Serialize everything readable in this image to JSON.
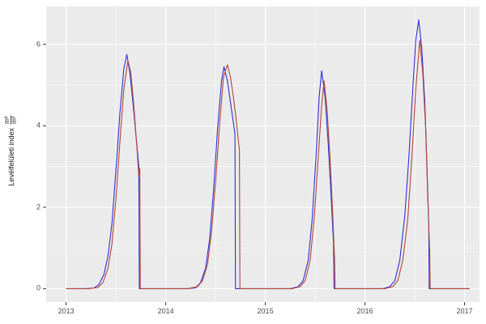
{
  "chart_data": {
    "type": "line",
    "title": "",
    "xlabel": "",
    "ylabel_text": "Levélfelületi index",
    "ylabel_fraction_numerator": "m²",
    "ylabel_fraction_denominator": "m²",
    "x_ticks": [
      2013,
      2014,
      2015,
      2016,
      2017
    ],
    "x_tick_labels": [
      "2013",
      "2014",
      "2015",
      "2016",
      "2017"
    ],
    "x_minor_ticks": [
      2013.5,
      2014.5,
      2015.5,
      2016.5
    ],
    "y_ticks": [
      0,
      2,
      4,
      6
    ],
    "y_tick_labels": [
      "0",
      "2",
      "4",
      "6"
    ],
    "y_minor_ticks": [
      1,
      3,
      5
    ],
    "xlim": [
      2012.8,
      2017.15
    ],
    "ylim": [
      -0.33,
      6.93
    ],
    "panel_bg": "#ebebeb",
    "grid_color": "#ffffff",
    "tick_mark_color": "#333333",
    "tick_text_color": "#4d4d4d",
    "legend": "none",
    "series": [
      {
        "name": "blue-series",
        "color": "#2f2fd3",
        "points": [
          [
            2013.0,
            0
          ],
          [
            2013.2,
            0
          ],
          [
            2013.28,
            0.02
          ],
          [
            2013.33,
            0.1
          ],
          [
            2013.38,
            0.35
          ],
          [
            2013.42,
            0.8
          ],
          [
            2013.46,
            1.6
          ],
          [
            2013.5,
            2.9
          ],
          [
            2013.54,
            4.3
          ],
          [
            2013.58,
            5.4
          ],
          [
            2013.61,
            5.75
          ],
          [
            2013.64,
            5.3
          ],
          [
            2013.67,
            4.6
          ],
          [
            2013.7,
            3.8
          ],
          [
            2013.73,
            3.0
          ],
          [
            2013.735,
            0
          ],
          [
            2014.2,
            0
          ],
          [
            2014.3,
            0.02
          ],
          [
            2014.35,
            0.15
          ],
          [
            2014.4,
            0.5
          ],
          [
            2014.44,
            1.2
          ],
          [
            2014.48,
            2.4
          ],
          [
            2014.52,
            3.9
          ],
          [
            2014.56,
            5.1
          ],
          [
            2014.585,
            5.45
          ],
          [
            2014.62,
            5.1
          ],
          [
            2014.66,
            4.4
          ],
          [
            2014.695,
            3.8
          ],
          [
            2014.7,
            0
          ],
          [
            2015.25,
            0
          ],
          [
            2015.33,
            0.05
          ],
          [
            2015.38,
            0.2
          ],
          [
            2015.43,
            0.7
          ],
          [
            2015.47,
            1.7
          ],
          [
            2015.51,
            3.3
          ],
          [
            2015.54,
            4.7
          ],
          [
            2015.565,
            5.35
          ],
          [
            2015.6,
            4.7
          ],
          [
            2015.63,
            3.6
          ],
          [
            2015.66,
            2.3
          ],
          [
            2015.685,
            1.1
          ],
          [
            2015.69,
            0
          ],
          [
            2016.18,
            0
          ],
          [
            2016.25,
            0.05
          ],
          [
            2016.3,
            0.2
          ],
          [
            2016.35,
            0.7
          ],
          [
            2016.4,
            1.8
          ],
          [
            2016.44,
            3.2
          ],
          [
            2016.48,
            4.9
          ],
          [
            2016.51,
            6.1
          ],
          [
            2016.54,
            6.6
          ],
          [
            2016.57,
            5.9
          ],
          [
            2016.6,
            4.6
          ],
          [
            2016.62,
            3.2
          ],
          [
            2016.64,
            1.6
          ],
          [
            2016.645,
            0
          ],
          [
            2017.05,
            0
          ]
        ]
      },
      {
        "name": "red-series",
        "color": "#b2443c",
        "points": [
          [
            2013.0,
            0
          ],
          [
            2013.22,
            0
          ],
          [
            2013.32,
            0.03
          ],
          [
            2013.37,
            0.15
          ],
          [
            2013.42,
            0.5
          ],
          [
            2013.46,
            1.1
          ],
          [
            2013.5,
            2.2
          ],
          [
            2013.54,
            3.6
          ],
          [
            2013.58,
            4.9
          ],
          [
            2013.62,
            5.6
          ],
          [
            2013.65,
            5.3
          ],
          [
            2013.68,
            4.5
          ],
          [
            2013.71,
            3.5
          ],
          [
            2013.73,
            2.75
          ],
          [
            2013.74,
            2.95
          ],
          [
            2013.745,
            0
          ],
          [
            2014.22,
            0
          ],
          [
            2014.32,
            0.05
          ],
          [
            2014.37,
            0.2
          ],
          [
            2014.42,
            0.6
          ],
          [
            2014.46,
            1.4
          ],
          [
            2014.5,
            2.6
          ],
          [
            2014.54,
            4.0
          ],
          [
            2014.58,
            5.2
          ],
          [
            2014.62,
            5.5
          ],
          [
            2014.65,
            5.2
          ],
          [
            2014.68,
            4.7
          ],
          [
            2014.71,
            4.1
          ],
          [
            2014.74,
            3.4
          ],
          [
            2014.745,
            0
          ],
          [
            2015.27,
            0
          ],
          [
            2015.35,
            0.05
          ],
          [
            2015.4,
            0.2
          ],
          [
            2015.45,
            0.7
          ],
          [
            2015.49,
            1.7
          ],
          [
            2015.53,
            3.2
          ],
          [
            2015.565,
            4.5
          ],
          [
            2015.59,
            5.1
          ],
          [
            2015.62,
            4.4
          ],
          [
            2015.65,
            3.2
          ],
          [
            2015.675,
            1.9
          ],
          [
            2015.695,
            0.7
          ],
          [
            2015.7,
            0
          ],
          [
            2016.2,
            0
          ],
          [
            2016.28,
            0.05
          ],
          [
            2016.33,
            0.2
          ],
          [
            2016.38,
            0.7
          ],
          [
            2016.43,
            1.7
          ],
          [
            2016.47,
            3.2
          ],
          [
            2016.51,
            4.9
          ],
          [
            2016.55,
            6.1
          ],
          [
            2016.58,
            5.3
          ],
          [
            2016.61,
            3.9
          ],
          [
            2016.63,
            2.3
          ],
          [
            2016.65,
            0.9
          ],
          [
            2016.655,
            0
          ],
          [
            2017.05,
            0
          ]
        ]
      }
    ]
  }
}
